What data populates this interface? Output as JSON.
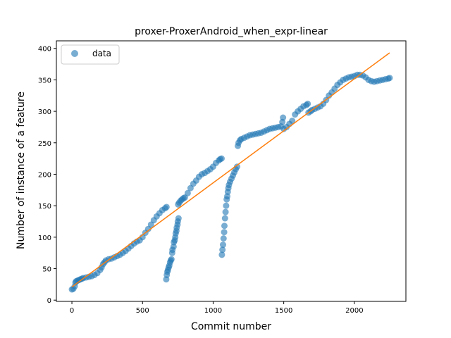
{
  "chart_data": {
    "type": "scatter",
    "title": "proxer-ProxerAndroid_when_expr-linear",
    "xlabel": "Commit number",
    "ylabel": "Number of instance of a feature",
    "xlim": [
      -110,
      2365
    ],
    "ylim": [
      -2,
      412
    ],
    "xticks": [
      0,
      500,
      1000,
      1500,
      2000
    ],
    "yticks": [
      0,
      50,
      100,
      150,
      200,
      250,
      300,
      350,
      400
    ],
    "grid": false,
    "legend": {
      "placement": "top-left",
      "entries": [
        "data"
      ]
    },
    "series": [
      {
        "name": "data",
        "kind": "scatter",
        "color": "#1f77b4",
        "points": [
          [
            0,
            17
          ],
          [
            10,
            18
          ],
          [
            20,
            22
          ],
          [
            25,
            28
          ],
          [
            30,
            30
          ],
          [
            40,
            31
          ],
          [
            50,
            32
          ],
          [
            60,
            33
          ],
          [
            70,
            34
          ],
          [
            80,
            35
          ],
          [
            100,
            36
          ],
          [
            120,
            37
          ],
          [
            140,
            38
          ],
          [
            160,
            40
          ],
          [
            180,
            43
          ],
          [
            200,
            48
          ],
          [
            210,
            52
          ],
          [
            220,
            57
          ],
          [
            230,
            60
          ],
          [
            240,
            63
          ],
          [
            260,
            65
          ],
          [
            280,
            66
          ],
          [
            300,
            68
          ],
          [
            320,
            70
          ],
          [
            340,
            72
          ],
          [
            360,
            75
          ],
          [
            380,
            78
          ],
          [
            400,
            82
          ],
          [
            420,
            86
          ],
          [
            440,
            90
          ],
          [
            460,
            93
          ],
          [
            480,
            95
          ],
          [
            500,
            100
          ],
          [
            520,
            107
          ],
          [
            540,
            113
          ],
          [
            560,
            120
          ],
          [
            580,
            127
          ],
          [
            600,
            133
          ],
          [
            620,
            138
          ],
          [
            640,
            143
          ],
          [
            660,
            146
          ],
          [
            670,
            148
          ],
          [
            668,
            33
          ],
          [
            672,
            40
          ],
          [
            676,
            45
          ],
          [
            680,
            48
          ],
          [
            685,
            52
          ],
          [
            690,
            55
          ],
          [
            695,
            60
          ],
          [
            700,
            63
          ],
          [
            705,
            65
          ],
          [
            710,
            75
          ],
          [
            712,
            80
          ],
          [
            720,
            85
          ],
          [
            722,
            92
          ],
          [
            728,
            95
          ],
          [
            732,
            100
          ],
          [
            735,
            106
          ],
          [
            740,
            110
          ],
          [
            742,
            115
          ],
          [
            748,
            120
          ],
          [
            750,
            125
          ],
          [
            755,
            130
          ],
          [
            752,
            152
          ],
          [
            760,
            155
          ],
          [
            770,
            158
          ],
          [
            780,
            160
          ],
          [
            790,
            162
          ],
          [
            800,
            163
          ],
          [
            820,
            170
          ],
          [
            840,
            178
          ],
          [
            860,
            185
          ],
          [
            880,
            190
          ],
          [
            900,
            196
          ],
          [
            920,
            200
          ],
          [
            940,
            202
          ],
          [
            960,
            205
          ],
          [
            980,
            208
          ],
          [
            1000,
            212
          ],
          [
            1020,
            218
          ],
          [
            1040,
            222
          ],
          [
            1050,
            224
          ],
          [
            1060,
            225
          ],
          [
            1062,
            72
          ],
          [
            1066,
            80
          ],
          [
            1070,
            88
          ],
          [
            1074,
            98
          ],
          [
            1078,
            108
          ],
          [
            1080,
            118
          ],
          [
            1084,
            130
          ],
          [
            1088,
            140
          ],
          [
            1092,
            150
          ],
          [
            1096,
            160
          ],
          [
            1100,
            165
          ],
          [
            1104,
            172
          ],
          [
            1108,
            178
          ],
          [
            1112,
            183
          ],
          [
            1120,
            188
          ],
          [
            1130,
            193
          ],
          [
            1140,
            198
          ],
          [
            1150,
            203
          ],
          [
            1160,
            208
          ],
          [
            1170,
            212
          ],
          [
            1175,
            245
          ],
          [
            1180,
            250
          ],
          [
            1190,
            254
          ],
          [
            1200,
            256
          ],
          [
            1220,
            258
          ],
          [
            1240,
            260
          ],
          [
            1260,
            262
          ],
          [
            1280,
            263
          ],
          [
            1300,
            264
          ],
          [
            1320,
            265
          ],
          [
            1340,
            266
          ],
          [
            1360,
            268
          ],
          [
            1380,
            270
          ],
          [
            1400,
            272
          ],
          [
            1420,
            273
          ],
          [
            1440,
            274
          ],
          [
            1460,
            275
          ],
          [
            1480,
            276
          ],
          [
            1490,
            283
          ],
          [
            1495,
            290
          ],
          [
            1500,
            272
          ],
          [
            1520,
            275
          ],
          [
            1540,
            280
          ],
          [
            1560,
            285
          ],
          [
            1580,
            295
          ],
          [
            1600,
            300
          ],
          [
            1620,
            304
          ],
          [
            1640,
            308
          ],
          [
            1660,
            310
          ],
          [
            1670,
            312
          ],
          [
            1675,
            298
          ],
          [
            1690,
            300
          ],
          [
            1700,
            302
          ],
          [
            1720,
            304
          ],
          [
            1740,
            306
          ],
          [
            1760,
            308
          ],
          [
            1780,
            312
          ],
          [
            1800,
            318
          ],
          [
            1820,
            325
          ],
          [
            1840,
            330
          ],
          [
            1860,
            336
          ],
          [
            1880,
            342
          ],
          [
            1900,
            346
          ],
          [
            1920,
            350
          ],
          [
            1940,
            352
          ],
          [
            1960,
            354
          ],
          [
            1980,
            355
          ],
          [
            2000,
            356
          ],
          [
            2020,
            358
          ],
          [
            2040,
            358
          ],
          [
            2060,
            357
          ],
          [
            2080,
            354
          ],
          [
            2100,
            350
          ],
          [
            2120,
            348
          ],
          [
            2140,
            347
          ],
          [
            2160,
            348
          ],
          [
            2180,
            349
          ],
          [
            2200,
            350
          ],
          [
            2220,
            351
          ],
          [
            2240,
            352
          ],
          [
            2250,
            353
          ]
        ]
      },
      {
        "name": "",
        "kind": "line",
        "color": "#ff7f0e",
        "points": [
          [
            0,
            21
          ],
          [
            2250,
            393
          ]
        ]
      }
    ]
  }
}
